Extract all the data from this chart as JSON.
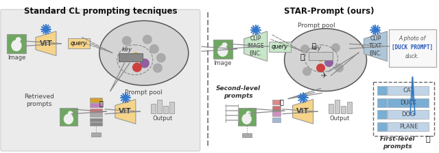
{
  "title_left": "Standard CL prompting tecniques",
  "title_right": "STAR-Prompt (ours)",
  "vit_color": "#f5d48a",
  "vit_color_dark": "#e8c060",
  "clip_image_color": "#c8e6c9",
  "clip_text_color": "#aec6d8",
  "query_color_left": "#f5d48a",
  "query_color_right": "#c8e6c9",
  "prompt_pool_bg": "#d4d4d4",
  "dot_yellow": "#d4a030",
  "dot_purple": "#9060a0",
  "dot_red": "#cc4040",
  "dot_gray": "#aaaaaa",
  "key_color": "#888888",
  "retrieved_colors": [
    "#d4a030",
    "#c080c0",
    "#e07070",
    "#aaaaaa",
    "#888888"
  ],
  "first_level_labels": [
    "CAT",
    "DUCK",
    "DOG",
    "PLANE"
  ],
  "first_level_colors": [
    "#c0d4e8",
    "#7aaed4",
    "#c0d4e8",
    "#c0d4e8"
  ],
  "output_bar_color": "#cccccc",
  "arrow_color": "#888888",
  "blue_arrow_color": "#3377bb",
  "snowflake_color": "#3377cc",
  "duck_prompt_color": "#2255bb",
  "bg_left": "#ebebeb",
  "text_gray": "#444444",
  "text_dark": "#222222"
}
